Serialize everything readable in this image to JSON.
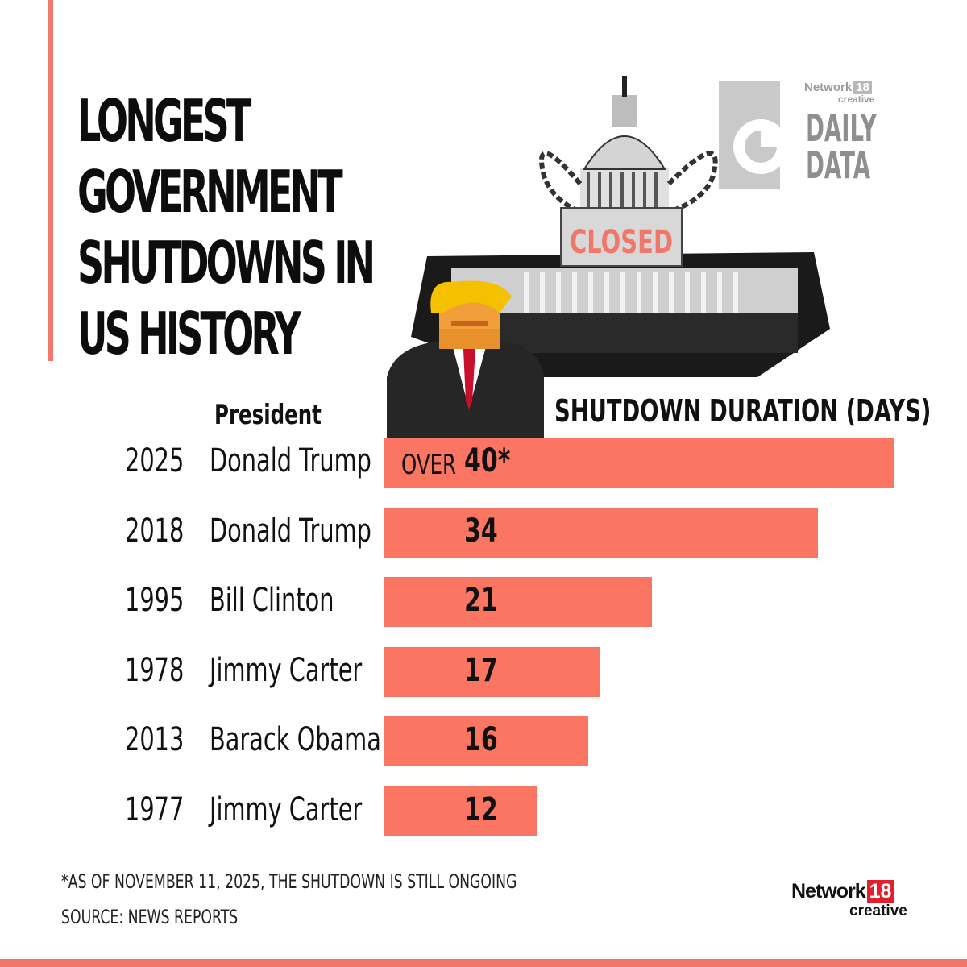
{
  "title_lines": [
    "LONGEST",
    "GOVERNMENT",
    "SHUTDOWNS IN",
    "US HISTORY"
  ],
  "brand": {
    "network": "Network",
    "number": "18",
    "creative": "creative",
    "daily": "DAILY",
    "data": "DATA"
  },
  "sign_text": "CLOSED",
  "column_headers": {
    "president": "President",
    "duration": "SHUTDOWN DURATION (DAYS)"
  },
  "chart_data": {
    "type": "bar",
    "orientation": "horizontal",
    "categories": [
      "2025",
      "2018",
      "1995",
      "1978",
      "2013",
      "1977"
    ],
    "presidents": [
      "Donald Trump",
      "Donald Trump",
      "Bill Clinton",
      "Jimmy Carter",
      "Barack Obama",
      "Jimmy Carter"
    ],
    "values": [
      40,
      34,
      21,
      17,
      16,
      12
    ],
    "value_labels": [
      "40*",
      "34",
      "21",
      "17",
      "16",
      "12"
    ],
    "value_prefix": [
      "OVER",
      "",
      "",
      "",
      "",
      ""
    ],
    "xlabel": "SHUTDOWN DURATION (DAYS)",
    "grid": false,
    "legend": "none",
    "bar_color": "#fa7562"
  },
  "footnote": "*AS OF NOVEMBER 11, 2025, THE SHUTDOWN IS STILL ONGOING",
  "source": "SOURCE: NEWS REPORTS",
  "footer_logo": {
    "network": "Network",
    "number": "18",
    "creative": "creative"
  },
  "colors": {
    "accent": "#f0786a",
    "bar": "#fa7562",
    "logo_red": "#e2202b"
  }
}
